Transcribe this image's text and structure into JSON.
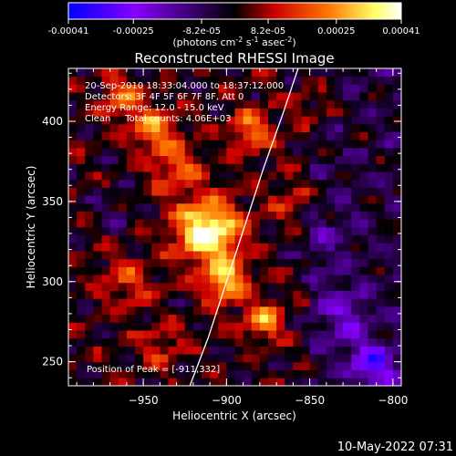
{
  "colorbar": {
    "ticks": [
      {
        "value": -0.00041,
        "label": "-0.00041"
      },
      {
        "value": -0.00025,
        "label": "-0.00025"
      },
      {
        "value": -8.2e-05,
        "label": "-8.2e-05"
      },
      {
        "value": 8.2e-05,
        "label": "8.2e-05"
      },
      {
        "value": 0.00025,
        "label": "0.00025"
      },
      {
        "value": 0.00041,
        "label": "0.00041"
      }
    ],
    "units_text": "(photons cm",
    "units_exp1": "-2",
    "units_mid": " s",
    "units_exp2": "-1",
    "units_end": " asec",
    "units_exp3": "-2",
    "units_close": ")",
    "range": [
      -0.00041,
      0.00041
    ],
    "colors": [
      "#0000ff",
      "#8800ff",
      "#000000",
      "#cc0000",
      "#ff7700",
      "#ffff66",
      "#ffffff"
    ]
  },
  "chart_data": {
    "type": "heatmap",
    "title": "Reconstructed RHESSI Image",
    "xlabel": "Heliocentric X (arcsec)",
    "ylabel": "Heliocentric Y (arcsec)",
    "xlim": [
      -995,
      -795
    ],
    "ylim": [
      235,
      433
    ],
    "xticks": [
      {
        "value": -950,
        "label": "−950"
      },
      {
        "value": -900,
        "label": "−900"
      },
      {
        "value": -850,
        "label": "−850"
      },
      {
        "value": -800,
        "label": "−800"
      }
    ],
    "yticks": [
      {
        "value": 250,
        "label": "250"
      },
      {
        "value": 300,
        "label": "300"
      },
      {
        "value": 350,
        "label": "350"
      },
      {
        "value": 400,
        "label": "400"
      }
    ],
    "info": [
      "20-Sep-2010 18:33:04.000 to 18:37:12.000",
      "Detectors: 3F 4F 5F 6F 7F 8F, Att 0",
      "Energy Range: 12.0 - 15.0 keV",
      "Clean     Total counts: 4.06E+03"
    ],
    "peak_label": "Position of Peak = [-911,332]",
    "peak": [
      -911,
      332
    ],
    "limb_points": [
      [
        -922,
        235
      ],
      [
        -911,
        265
      ],
      [
        -900,
        300
      ],
      [
        -889,
        335
      ],
      [
        -878,
        370
      ],
      [
        -866,
        405
      ],
      [
        -857,
        433
      ]
    ],
    "image_grid": {
      "nx": 40,
      "ny": 40,
      "x0": -995,
      "x1": -795,
      "y0": 235,
      "y1": 433
    },
    "sources": [
      {
        "x": -911,
        "y": 332,
        "amp": 0.00041,
        "sigma": 14
      },
      {
        "x": -900,
        "y": 300,
        "amp": 0.00028,
        "sigma": 10
      },
      {
        "x": -944,
        "y": 395,
        "amp": 0.00024,
        "sigma": 9
      },
      {
        "x": -962,
        "y": 415,
        "amp": 0.0002,
        "sigma": 9
      },
      {
        "x": -930,
        "y": 372,
        "amp": 0.00018,
        "sigma": 11
      },
      {
        "x": -885,
        "y": 395,
        "amp": 0.0002,
        "sigma": 10
      },
      {
        "x": -878,
        "y": 275,
        "amp": 0.00025,
        "sigma": 8
      },
      {
        "x": -960,
        "y": 300,
        "amp": 0.00014,
        "sigma": 12
      },
      {
        "x": -940,
        "y": 260,
        "amp": 0.00012,
        "sigma": 10
      },
      {
        "x": -860,
        "y": 350,
        "amp": 0.00012,
        "sigma": 10
      },
      {
        "x": -845,
        "y": 410,
        "amp": 0.0001,
        "sigma": 9
      },
      {
        "x": -830,
        "y": 280,
        "amp": -0.00014,
        "sigma": 12
      },
      {
        "x": -812,
        "y": 248,
        "amp": -0.00025,
        "sigma": 10
      },
      {
        "x": -845,
        "y": 330,
        "amp": -8e-05,
        "sigma": 14
      },
      {
        "x": -968,
        "y": 345,
        "amp": -6e-05,
        "sigma": 10
      }
    ]
  },
  "timestamp": "10-May-2022 07:31"
}
